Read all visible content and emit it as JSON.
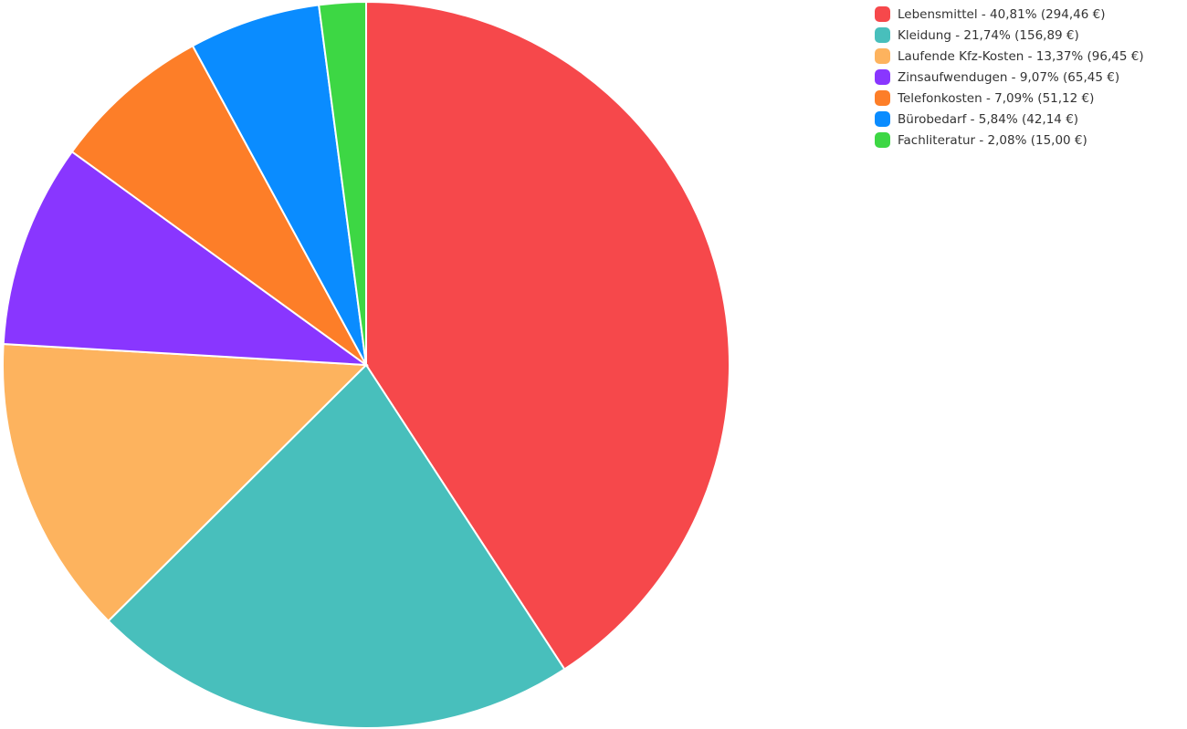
{
  "chart_data": {
    "type": "pie",
    "categories": [
      "Lebensmittel - 40,81% (294,46 €)",
      "Kleidung - 21,74% (156,89 €)",
      "Laufende Kfz-Kosten - 13,37% (96,45 €)",
      "Zinsaufwendugen - 9,07% (65,45 €)",
      "Telefonkosten - 7,09% (51,12 €)",
      "Bürobedarf - 5,84% (42,14 €)",
      "Fachliteratur - 2,08% (15,00 €)"
    ],
    "values": [
      40.81,
      21.74,
      13.37,
      9.07,
      7.09,
      5.84,
      2.08
    ],
    "colors": [
      "#f6484b",
      "#48bfbc",
      "#fdb35e",
      "#8936ff",
      "#fd7e28",
      "#0a8cff",
      "#3dd744"
    ],
    "legend": "top-right"
  }
}
